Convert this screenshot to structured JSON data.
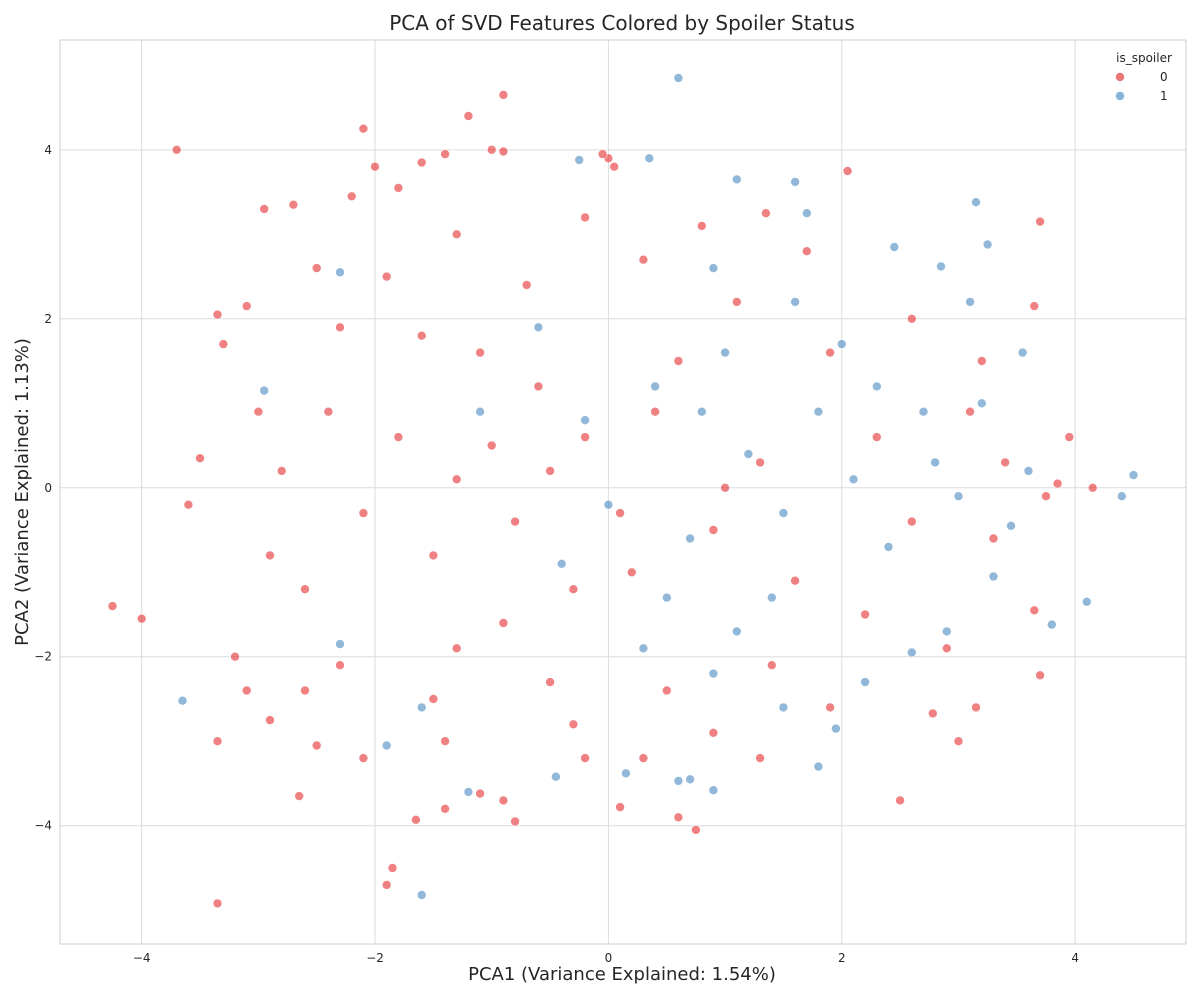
{
  "chart_data": {
    "type": "scatter",
    "title": "PCA of SVD Features Colored by Spoiler Status",
    "xlabel": "PCA1 (Variance Explained: 1.54%)",
    "ylabel": "PCA2 (Variance Explained: 1.13%)",
    "xlim": [
      -4.7,
      4.95
    ],
    "ylim": [
      -5.4,
      5.3
    ],
    "xticks": [
      -4,
      -2,
      0,
      2,
      4
    ],
    "yticks": [
      -4,
      -2,
      0,
      2,
      4
    ],
    "xtick_labels": [
      "−4",
      "−2",
      "0",
      "2",
      "4"
    ],
    "ytick_labels": [
      "−4",
      "−2",
      "0",
      "2",
      "4"
    ],
    "grid": true,
    "legend": {
      "title": "is_spoiler",
      "placement": "top-right",
      "entries": [
        {
          "label": "0",
          "color": "#e41a1c"
        },
        {
          "label": "1",
          "color": "#377eb8"
        }
      ]
    },
    "series": [
      {
        "name": "0",
        "color": "#e41a1c",
        "points": [
          [
            -4.25,
            -1.4
          ],
          [
            -4.0,
            -1.55
          ],
          [
            -3.7,
            4.0
          ],
          [
            -3.35,
            -3.0
          ],
          [
            -3.35,
            -4.92
          ],
          [
            -3.5,
            0.35
          ],
          [
            -3.3,
            1.7
          ],
          [
            -3.1,
            2.15
          ],
          [
            -2.95,
            3.3
          ],
          [
            -2.7,
            3.35
          ],
          [
            -2.65,
            -3.65
          ],
          [
            -2.1,
            4.25
          ],
          [
            -1.6,
            3.85
          ],
          [
            -1.4,
            3.95
          ],
          [
            -1.2,
            4.4
          ],
          [
            -0.9,
            4.65
          ],
          [
            -1.0,
            4.0
          ],
          [
            -0.9,
            3.98
          ],
          [
            -1.9,
            -4.7
          ],
          [
            -1.85,
            -4.5
          ],
          [
            -1.65,
            -3.93
          ],
          [
            -1.4,
            -3.8
          ],
          [
            -1.1,
            -3.62
          ],
          [
            -0.8,
            -3.95
          ],
          [
            -0.9,
            -3.7
          ],
          [
            0.1,
            -3.78
          ],
          [
            0.6,
            -3.9
          ],
          [
            0.75,
            -4.05
          ],
          [
            2.5,
            -3.7
          ],
          [
            2.78,
            -2.67
          ],
          [
            3.0,
            -3.0
          ],
          [
            3.15,
            -2.6
          ],
          [
            3.7,
            -2.22
          ],
          [
            3.7,
            3.15
          ],
          [
            3.65,
            2.15
          ],
          [
            3.95,
            0.6
          ],
          [
            4.15,
            0.0
          ],
          [
            3.85,
            0.05
          ],
          [
            3.75,
            -0.1
          ],
          [
            3.65,
            -1.45
          ],
          [
            2.05,
            3.75
          ],
          [
            1.35,
            3.25
          ],
          [
            0.0,
            3.9
          ],
          [
            0.05,
            3.8
          ],
          [
            -0.05,
            3.95
          ],
          [
            -2.0,
            3.8
          ],
          [
            -1.8,
            3.55
          ],
          [
            -2.2,
            3.45
          ],
          [
            -3.35,
            2.05
          ],
          [
            -3.6,
            -0.2
          ],
          [
            -3.2,
            -2.0
          ],
          [
            -3.1,
            -2.4
          ],
          [
            -2.9,
            -2.75
          ],
          [
            -2.5,
            -3.05
          ],
          [
            -2.1,
            -3.2
          ],
          [
            -0.2,
            -3.2
          ],
          [
            0.3,
            -3.2
          ],
          [
            1.3,
            -3.2
          ],
          [
            -1.0,
            0.5
          ],
          [
            -0.5,
            0.2
          ],
          [
            -0.8,
            -0.4
          ],
          [
            -1.3,
            0.1
          ],
          [
            -0.2,
            0.6
          ],
          [
            0.1,
            -0.3
          ],
          [
            -1.5,
            -0.8
          ],
          [
            -0.6,
            1.2
          ],
          [
            -1.1,
            1.6
          ],
          [
            -0.3,
            -1.2
          ],
          [
            0.4,
            0.9
          ],
          [
            0.2,
            -1.0
          ],
          [
            -1.8,
            0.6
          ],
          [
            -2.1,
            -0.3
          ],
          [
            -2.4,
            0.9
          ],
          [
            -1.6,
            1.8
          ],
          [
            -0.9,
            -1.6
          ],
          [
            -1.3,
            -1.9
          ],
          [
            0.6,
            1.5
          ],
          [
            0.9,
            -0.5
          ],
          [
            1.3,
            0.3
          ],
          [
            1.6,
            -1.1
          ],
          [
            -2.6,
            -1.2
          ],
          [
            -2.8,
            0.2
          ],
          [
            -2.3,
            1.9
          ],
          [
            -1.9,
            2.5
          ],
          [
            -0.7,
            2.4
          ],
          [
            0.3,
            2.7
          ],
          [
            1.1,
            2.2
          ],
          [
            1.9,
            1.6
          ],
          [
            2.3,
            0.6
          ],
          [
            2.6,
            -0.4
          ],
          [
            2.2,
            -1.5
          ],
          [
            1.4,
            -2.1
          ],
          [
            0.5,
            -2.4
          ],
          [
            -0.5,
            -2.3
          ],
          [
            -1.5,
            -2.5
          ],
          [
            -2.3,
            -2.1
          ],
          [
            -2.9,
            -0.8
          ],
          [
            -3.0,
            0.9
          ],
          [
            -2.5,
            2.6
          ],
          [
            -1.3,
            3.0
          ],
          [
            -0.2,
            3.2
          ],
          [
            0.8,
            3.1
          ],
          [
            1.7,
            2.8
          ],
          [
            2.6,
            2.0
          ],
          [
            3.1,
            0.9
          ],
          [
            3.3,
            -0.6
          ],
          [
            2.9,
            -1.9
          ],
          [
            1.9,
            -2.6
          ],
          [
            0.9,
            -2.9
          ],
          [
            -0.3,
            -2.8
          ],
          [
            -1.4,
            -3.0
          ],
          [
            -2.6,
            -2.4
          ],
          [
            3.2,
            1.5
          ],
          [
            3.4,
            0.3
          ],
          [
            1.0,
            0.0
          ]
        ]
      },
      {
        "name": "1",
        "color": "#377eb8",
        "points": [
          [
            0.6,
            4.85
          ],
          [
            -3.65,
            -2.52
          ],
          [
            -1.6,
            -4.82
          ],
          [
            4.5,
            0.15
          ],
          [
            4.4,
            -0.1
          ],
          [
            4.1,
            -1.35
          ],
          [
            3.8,
            -1.62
          ],
          [
            3.25,
            2.88
          ],
          [
            3.15,
            3.38
          ],
          [
            2.85,
            2.62
          ],
          [
            1.6,
            3.62
          ],
          [
            1.1,
            3.65
          ],
          [
            1.95,
            -2.85
          ],
          [
            1.8,
            -3.3
          ],
          [
            0.9,
            -3.58
          ],
          [
            0.7,
            -3.45
          ],
          [
            0.6,
            -3.47
          ],
          [
            0.15,
            -3.38
          ],
          [
            -0.45,
            -3.42
          ],
          [
            -1.2,
            -3.6
          ],
          [
            -1.6,
            -2.6
          ],
          [
            -1.9,
            -3.05
          ],
          [
            -2.3,
            2.55
          ],
          [
            -2.95,
            1.15
          ],
          [
            -2.3,
            -1.85
          ],
          [
            -0.25,
            3.88
          ],
          [
            0.35,
            3.9
          ],
          [
            1.7,
            3.25
          ],
          [
            2.45,
            2.85
          ],
          [
            3.1,
            2.2
          ],
          [
            3.55,
            1.6
          ],
          [
            3.6,
            0.2
          ],
          [
            3.45,
            -0.45
          ],
          [
            3.3,
            -1.05
          ],
          [
            2.9,
            -1.7
          ],
          [
            2.6,
            -1.95
          ],
          [
            2.2,
            -2.3
          ],
          [
            1.5,
            -2.6
          ],
          [
            0.9,
            -2.2
          ],
          [
            0.3,
            -1.9
          ],
          [
            0.8,
            0.9
          ],
          [
            1.2,
            0.4
          ],
          [
            1.5,
            -0.3
          ],
          [
            0.7,
            -0.6
          ],
          [
            1.8,
            0.9
          ],
          [
            2.1,
            0.1
          ],
          [
            2.4,
            -0.7
          ],
          [
            1.0,
            1.6
          ],
          [
            0.4,
            1.2
          ],
          [
            -0.2,
            0.8
          ],
          [
            0.0,
            -0.2
          ],
          [
            2.0,
            1.7
          ],
          [
            2.7,
            0.9
          ],
          [
            3.0,
            -0.1
          ],
          [
            1.4,
            -1.3
          ],
          [
            2.3,
            1.2
          ],
          [
            2.8,
            0.3
          ],
          [
            3.2,
            1.0
          ],
          [
            1.6,
            2.2
          ],
          [
            0.9,
            2.6
          ],
          [
            -0.6,
            1.9
          ],
          [
            -1.1,
            0.9
          ],
          [
            -0.4,
            -0.9
          ],
          [
            0.5,
            -1.3
          ],
          [
            1.1,
            -1.7
          ]
        ]
      }
    ]
  }
}
